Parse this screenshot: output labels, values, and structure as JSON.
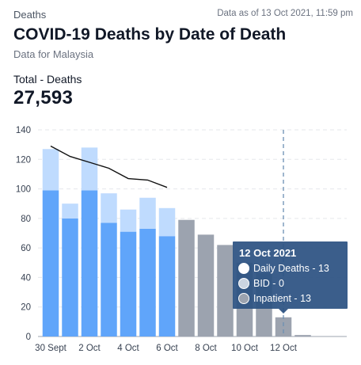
{
  "header": {
    "section_label": "Deaths",
    "data_as_of": "Data as of 13 Oct 2021, 11:59 pm",
    "title": "COVID-19 Deaths by Date of Death",
    "subtitle": "Data for Malaysia"
  },
  "total": {
    "label": "Total - Deaths",
    "value": "27,593"
  },
  "colors": {
    "bid": "#bfdbfe",
    "inpatient": "#60a5fa",
    "incomplete": "#9ca3af",
    "moving_average": "#111111",
    "tooltip_bg": "#2c5282"
  },
  "chart_data": {
    "type": "bar",
    "stacked": true,
    "categories": [
      "30 Sept",
      "1 Oct",
      "2 Oct",
      "3 Oct",
      "4 Oct",
      "5 Oct",
      "6 Oct",
      "7 Oct",
      "8 Oct",
      "9 Oct",
      "10 Oct",
      "11 Oct",
      "12 Oct",
      "13 Oct"
    ],
    "x_tick_labels": [
      "30 Sept",
      "2 Oct",
      "4 Oct",
      "6 Oct",
      "8 Oct",
      "10 Oct",
      "12 Oct"
    ],
    "series": [
      {
        "name": "Inpatient",
        "values": [
          99,
          80,
          99,
          77,
          71,
          73,
          68,
          79,
          69,
          62,
          50,
          43,
          13,
          1
        ]
      },
      {
        "name": "BID",
        "values": [
          28,
          10,
          29,
          20,
          15,
          21,
          19,
          0,
          0,
          0,
          0,
          0,
          0,
          0
        ]
      }
    ],
    "incomplete_from_index": 7,
    "moving_average": [
      129,
      122,
      118,
      114,
      107,
      106,
      101
    ],
    "ylim": [
      0,
      140
    ],
    "yticks": [
      0,
      20,
      40,
      60,
      80,
      100,
      120,
      140
    ],
    "grid": "horizontal dashed",
    "highlight_index": 12,
    "tooltip": {
      "title": "12 Oct 2021",
      "rows": [
        {
          "label": "Daily Deaths - 13",
          "swatch": "#ffffff"
        },
        {
          "label": "BID - 0",
          "swatch": "#cbd5e1"
        },
        {
          "label": "Inpatient - 13",
          "swatch": "#9ca3af"
        }
      ]
    }
  }
}
